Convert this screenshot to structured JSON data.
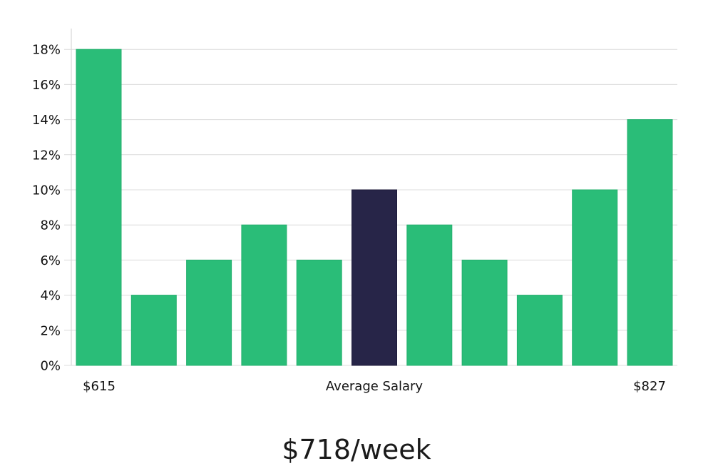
{
  "chart_data": {
    "type": "bar",
    "values": [
      18,
      4,
      6,
      8,
      6,
      10,
      8,
      6,
      4,
      10,
      14
    ],
    "highlight_index": 5,
    "y_ticks": [
      "0%",
      "2%",
      "4%",
      "6%",
      "8%",
      "10%",
      "12%",
      "14%",
      "16%",
      "18%"
    ],
    "ylim": [
      0,
      19
    ],
    "x_labels": {
      "left": "$615",
      "center": "Average Salary",
      "right": "$827"
    },
    "grid": true,
    "colors": {
      "bar": "#2abd78",
      "highlight": "#272548"
    }
  },
  "caption": "$718/week"
}
